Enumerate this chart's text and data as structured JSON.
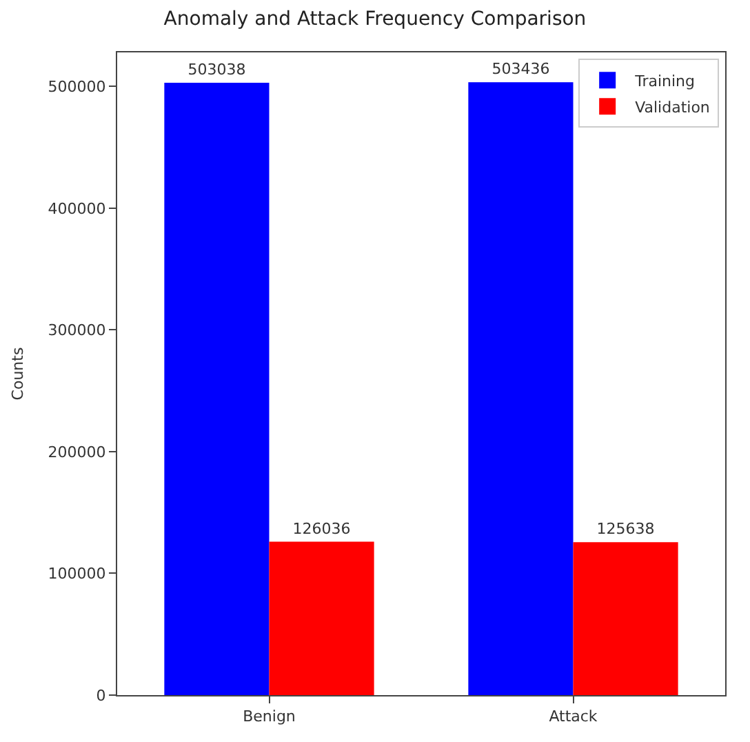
{
  "chart_data": {
    "type": "bar",
    "title": "Anomaly and Attack Frequency Comparison",
    "ylabel": "Counts",
    "categories": [
      "Benign",
      "Attack"
    ],
    "series": [
      {
        "name": "Training",
        "color": "#0000ff",
        "values": [
          503038,
          503436
        ]
      },
      {
        "name": "Validation",
        "color": "#ff0000",
        "values": [
          126036,
          125638
        ]
      }
    ],
    "ylim": [
      0,
      528000
    ],
    "yticks": [
      0,
      100000,
      200000,
      300000,
      400000,
      500000
    ],
    "data_labels": true,
    "legend": "top right"
  }
}
